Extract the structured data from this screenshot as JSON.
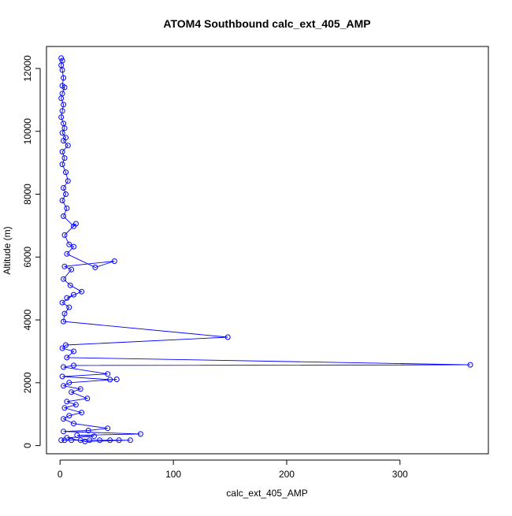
{
  "chart_data": {
    "type": "line",
    "title": "ATOM4 Southbound calc_ext_405_AMP",
    "xlabel": "calc_ext_405_AMP",
    "ylabel": "Altitude (m)",
    "xlim": [
      -12,
      378
    ],
    "ylim": [
      -260,
      12700
    ],
    "xticks": [
      0,
      100,
      200,
      300
    ],
    "yticks": [
      0,
      2000,
      4000,
      6000,
      8000,
      10000,
      12000
    ],
    "grid": false,
    "legend": "none",
    "series_color": "#0000ff",
    "marker": "open-circle",
    "series": [
      {
        "points": [
          [
            1,
            12330
          ],
          [
            2,
            12250
          ],
          [
            1,
            12100
          ],
          [
            2,
            11950
          ],
          [
            3,
            11700
          ],
          [
            2,
            11450
          ],
          [
            4,
            11400
          ],
          [
            2,
            11200
          ],
          [
            1,
            11050
          ],
          [
            3,
            10850
          ],
          [
            2,
            10650
          ],
          [
            1,
            10450
          ],
          [
            3,
            10250
          ],
          [
            4,
            10100
          ],
          [
            2,
            9950
          ],
          [
            5,
            9800
          ],
          [
            3,
            9700
          ],
          [
            7,
            9550
          ],
          [
            2,
            9350
          ],
          [
            4,
            9150
          ],
          [
            2,
            8950
          ],
          [
            5,
            8700
          ],
          [
            7,
            8420
          ],
          [
            3,
            8200
          ],
          [
            5,
            8000
          ],
          [
            2,
            7800
          ],
          [
            6,
            7550
          ],
          [
            3,
            7300
          ],
          [
            12,
            6980
          ],
          [
            14,
            7060
          ],
          [
            4,
            6700
          ],
          [
            8,
            6400
          ],
          [
            12,
            6330
          ],
          [
            6,
            6100
          ],
          [
            31,
            5670
          ],
          [
            48,
            5870
          ],
          [
            4,
            5700
          ],
          [
            10,
            5600
          ],
          [
            3,
            5300
          ],
          [
            9,
            5100
          ],
          [
            19,
            4900
          ],
          [
            6,
            4700
          ],
          [
            12,
            4800
          ],
          [
            2,
            4550
          ],
          [
            8,
            4400
          ],
          [
            4,
            4200
          ],
          [
            3,
            3950
          ],
          [
            148,
            3450
          ],
          [
            5,
            3200
          ],
          [
            2,
            3100
          ],
          [
            12,
            3000
          ],
          [
            6,
            2800
          ],
          [
            362,
            2570
          ],
          [
            12,
            2550
          ],
          [
            3,
            2500
          ],
          [
            42,
            2280
          ],
          [
            2,
            2200
          ],
          [
            44,
            2100
          ],
          [
            50,
            2110
          ],
          [
            8,
            2000
          ],
          [
            3,
            1900
          ],
          [
            18,
            1800
          ],
          [
            10,
            1700
          ],
          [
            24,
            1500
          ],
          [
            6,
            1400
          ],
          [
            14,
            1300
          ],
          [
            4,
            1200
          ],
          [
            19,
            1050
          ],
          [
            8,
            950
          ],
          [
            3,
            850
          ],
          [
            12,
            700
          ],
          [
            42,
            550
          ],
          [
            25,
            480
          ],
          [
            3,
            450
          ],
          [
            71,
            370
          ],
          [
            15,
            330
          ],
          [
            30,
            300
          ],
          [
            6,
            250
          ],
          [
            22,
            130
          ],
          [
            62,
            170
          ],
          [
            44,
            170
          ],
          [
            52,
            170
          ],
          [
            35,
            170
          ],
          [
            26,
            170
          ],
          [
            18,
            170
          ],
          [
            10,
            170
          ],
          [
            4,
            170
          ],
          [
            1,
            170
          ]
        ]
      }
    ]
  }
}
